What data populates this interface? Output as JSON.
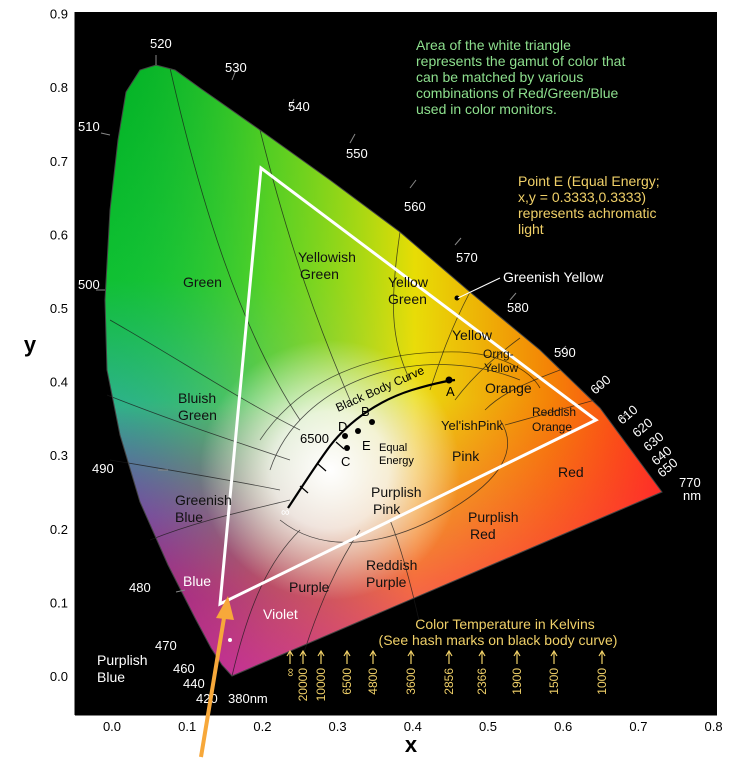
{
  "diagram": {
    "axes": {
      "x_label": "x",
      "y_label": "y",
      "x_ticks": [
        "0.0",
        "0.1",
        "0.2",
        "0.3",
        "0.4",
        "0.5",
        "0.6",
        "0.7",
        "0.8"
      ],
      "y_ticks": [
        "0.0",
        "0.1",
        "0.2",
        "0.3",
        "0.4",
        "0.5",
        "0.6",
        "0.7",
        "0.8",
        "0.9"
      ],
      "xlim": [
        0.0,
        0.8
      ],
      "ylim": [
        0.0,
        0.9
      ]
    },
    "notes": {
      "gamut": [
        "Area of the white triangle",
        "represents the gamut of color that",
        "can be matched by various",
        "combinations of Red/Green/Blue",
        "used in color monitors."
      ],
      "point_e": [
        "Point E (Equal Energy;",
        "x,y = 0.3333,0.3333)",
        "represents achromatic",
        "light"
      ],
      "kelvin": [
        "Color Temperature in Kelvins",
        "(See hash marks on black body curve)"
      ]
    },
    "wavelengths": {
      "w380": "380nm",
      "w440": "440",
      "w460": "460",
      "w470": "470",
      "w480": "480",
      "w490": "490",
      "w500": "500",
      "w510": "510",
      "w520": "520",
      "w530": "530",
      "w540": "540",
      "w550": "550",
      "w560": "560",
      "w570": "570",
      "w580": "580",
      "w590": "590",
      "w600": "600",
      "w610": "610",
      "w620": "620",
      "w630": "630",
      "w640": "640",
      "w650": "650",
      "w770": "770",
      "w770unit": "nm"
    },
    "regions": {
      "green": "Green",
      "yellowish_green_1": "Yellowish",
      "yellowish_green_2": "Green",
      "yellow_green_1": "Yellow",
      "yellow_green_2": "Green",
      "greenish_yellow": "Greenish Yellow",
      "yellow": "Yellow",
      "orng_yellow_1": "Orng-",
      "orng_yellow_2": "Yellow",
      "orange": "Orange",
      "reddish_orange_1": "Reddish",
      "reddish_orange_2": "Orange",
      "red": "Red",
      "bluish_green_1": "Bluish",
      "bluish_green_2": "Green",
      "greenish_blue_1": "Greenish",
      "greenish_blue_2": "Blue",
      "blue": "Blue",
      "purplish_blue_1": "Purplish",
      "purplish_blue_2": "Blue",
      "violet": "Violet",
      "purple": "Purple",
      "reddish_purple_1": "Reddish",
      "reddish_purple_2": "Purple",
      "purplish_pink_1": "Purplish",
      "purplish_pink_2": "Pink",
      "purplish_red_1": "Purplish",
      "purplish_red_2": "Red",
      "pink": "Pink",
      "yelish_pink": "Yel'ishPink"
    },
    "curve": {
      "label": "Black Body Curve",
      "infinity": "∞",
      "points": {
        "A": "A",
        "B": "B",
        "C": "C",
        "D": "D",
        "E": "E",
        "t6500": "6500"
      },
      "equal_energy_1": "Equal",
      "equal_energy_2": "Energy"
    },
    "kelvin_marks": [
      "∞",
      "20000",
      "10000",
      "6500",
      "4800",
      "3600",
      "2856",
      "2366",
      "1900",
      "1500",
      "1000"
    ],
    "colors": {
      "note_green": "#8ee08e",
      "note_yellow": "#f0d068",
      "arrow": "#f7a83a",
      "background": "#000000",
      "triangle": "#ffffff"
    }
  }
}
